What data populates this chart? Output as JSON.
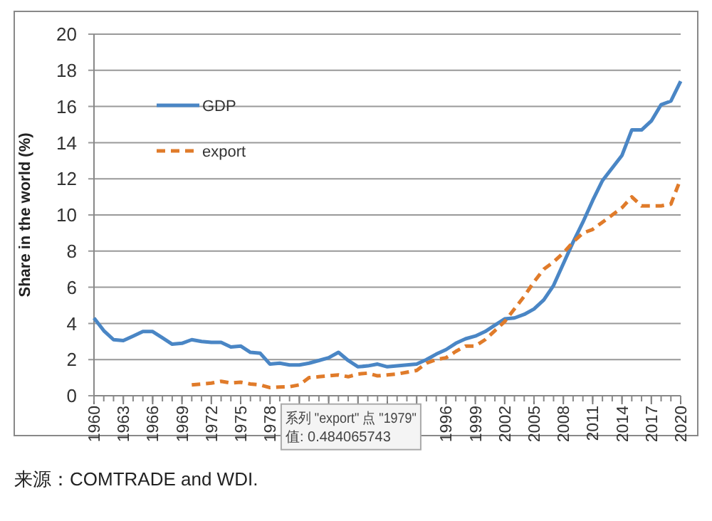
{
  "chart_data": {
    "type": "line",
    "ylabel": "Share in the world (%)",
    "x": [
      1960,
      1961,
      1962,
      1963,
      1964,
      1965,
      1966,
      1967,
      1968,
      1969,
      1970,
      1971,
      1972,
      1973,
      1974,
      1975,
      1976,
      1977,
      1978,
      1979,
      1980,
      1981,
      1982,
      1983,
      1984,
      1985,
      1986,
      1987,
      1988,
      1989,
      1990,
      1991,
      1992,
      1993,
      1994,
      1995,
      1996,
      1997,
      1998,
      1999,
      2000,
      2001,
      2002,
      2003,
      2004,
      2005,
      2006,
      2007,
      2008,
      2009,
      2010,
      2011,
      2012,
      2013,
      2014,
      2015,
      2016,
      2017,
      2018,
      2019,
      2020
    ],
    "series": [
      {
        "name": "GDP",
        "color": "#4a86c5",
        "line_style": "solid",
        "values": [
          4.3,
          3.6,
          3.1,
          3.05,
          3.3,
          3.55,
          3.55,
          3.2,
          2.85,
          2.9,
          3.1,
          3.0,
          2.95,
          2.95,
          2.7,
          2.75,
          2.4,
          2.35,
          1.75,
          1.8,
          1.7,
          1.7,
          1.8,
          1.95,
          2.1,
          2.4,
          1.95,
          1.6,
          1.65,
          1.75,
          1.6,
          1.65,
          1.7,
          1.75,
          2.0,
          2.3,
          2.55,
          2.9,
          3.15,
          3.3,
          3.55,
          3.9,
          4.25,
          4.3,
          4.5,
          4.8,
          5.3,
          6.1,
          7.3,
          8.5,
          9.6,
          10.8,
          11.9,
          12.6,
          13.3,
          14.7,
          14.7,
          15.2,
          16.1,
          16.3,
          17.4
        ]
      },
      {
        "name": "export",
        "color": "#e07b2a",
        "line_style": "dashed",
        "values": [
          null,
          null,
          null,
          null,
          null,
          null,
          null,
          null,
          null,
          null,
          0.6,
          0.65,
          0.7,
          0.8,
          0.7,
          0.75,
          0.65,
          0.6,
          0.45,
          0.484065743,
          0.5,
          0.6,
          1.0,
          1.05,
          1.1,
          1.15,
          1.05,
          1.2,
          1.25,
          1.1,
          1.15,
          1.2,
          1.3,
          1.4,
          1.8,
          2.0,
          2.1,
          2.45,
          2.75,
          2.75,
          3.1,
          3.6,
          4.1,
          4.8,
          5.5,
          6.3,
          7.0,
          7.4,
          7.9,
          8.5,
          9.0,
          9.2,
          9.6,
          10.0,
          10.4,
          11.0,
          10.5,
          10.5,
          10.5,
          10.6,
          12.0
        ]
      }
    ],
    "xlim": [
      1960,
      2020
    ],
    "xticks": [
      1960,
      1963,
      1966,
      1969,
      1972,
      1975,
      1978,
      {
        "value": 1981,
        "label": null
      },
      {
        "value": 1984,
        "label": null
      },
      {
        "value": 1987,
        "label": null
      },
      {
        "value": 1990,
        "label": null
      },
      {
        "value": 1993,
        "label": null
      },
      1996,
      1999,
      2002,
      2005,
      2008,
      2011,
      2014,
      2017,
      2020
    ],
    "ylim": [
      0,
      20
    ],
    "yticks": [
      0,
      2,
      4,
      6,
      8,
      10,
      12,
      14,
      16,
      18,
      20
    ],
    "grid": "y",
    "legend": "top left",
    "annotations": [
      {
        "text": "系列 \"export\" 点 \"1979\"\n值: 0.484065743",
        "x": 1979,
        "y": 0.484065743
      },
      "来源：COMTRADE and WDI."
    ]
  }
}
